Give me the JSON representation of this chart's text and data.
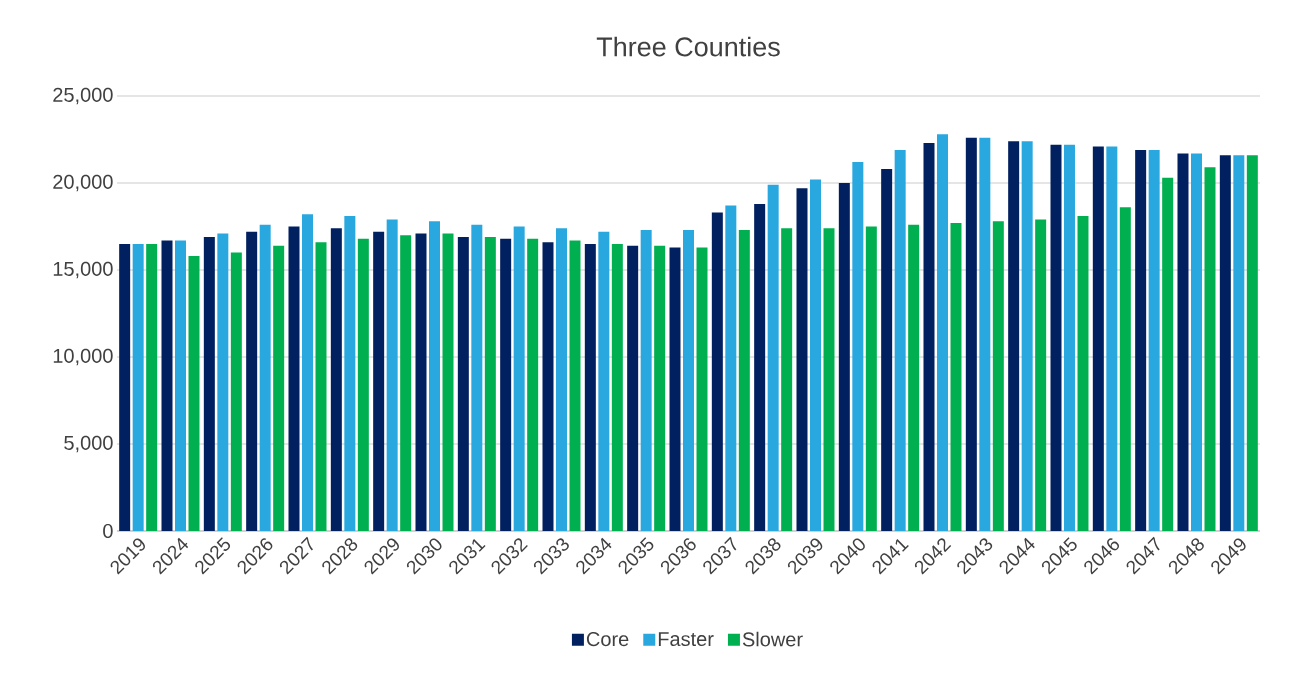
{
  "chart_data": {
    "type": "bar",
    "title": "Three Counties",
    "categories": [
      "2019",
      "2024",
      "2025",
      "2026",
      "2027",
      "2028",
      "2029",
      "2030",
      "2031",
      "2032",
      "2033",
      "2034",
      "2035",
      "2036",
      "2037",
      "2038",
      "2039",
      "2040",
      "2041",
      "2042",
      "2043",
      "2044",
      "2045",
      "2046",
      "2047",
      "2048",
      "2049"
    ],
    "series": [
      {
        "name": "Core",
        "color": "#002060",
        "values": [
          16500,
          16700,
          16900,
          17200,
          17500,
          17400,
          17200,
          17100,
          16900,
          16800,
          16600,
          16500,
          16400,
          16300,
          18300,
          18800,
          19700,
          20000,
          20800,
          22300,
          22600,
          22400,
          22200,
          22100,
          21900,
          21700,
          21600
        ]
      },
      {
        "name": "Faster",
        "color": "#29a8e0",
        "values": [
          16500,
          16700,
          17100,
          17600,
          18200,
          18100,
          17900,
          17800,
          17600,
          17500,
          17400,
          17200,
          17300,
          17300,
          18700,
          19900,
          20200,
          21200,
          21900,
          22800,
          22600,
          22400,
          22200,
          22100,
          21900,
          21700,
          21600
        ]
      },
      {
        "name": "Slower",
        "color": "#00b050",
        "values": [
          16500,
          15800,
          16000,
          16400,
          16600,
          16800,
          17000,
          17100,
          16900,
          16800,
          16700,
          16500,
          16400,
          16300,
          17300,
          17400,
          17400,
          17500,
          17600,
          17700,
          17800,
          17900,
          18100,
          18600,
          20300,
          20900,
          21600
        ]
      }
    ],
    "ylim": [
      0,
      25000
    ],
    "yticks": [
      0,
      {
        "value": 5000,
        "label": "5,000"
      },
      {
        "value": 10000,
        "label": "10,000"
      },
      {
        "value": 15000,
        "label": "15,000"
      },
      {
        "value": 20000,
        "label": "20,000"
      },
      {
        "value": 25000,
        "label": "25,000"
      }
    ],
    "grid": "y",
    "legend": "bottom"
  }
}
